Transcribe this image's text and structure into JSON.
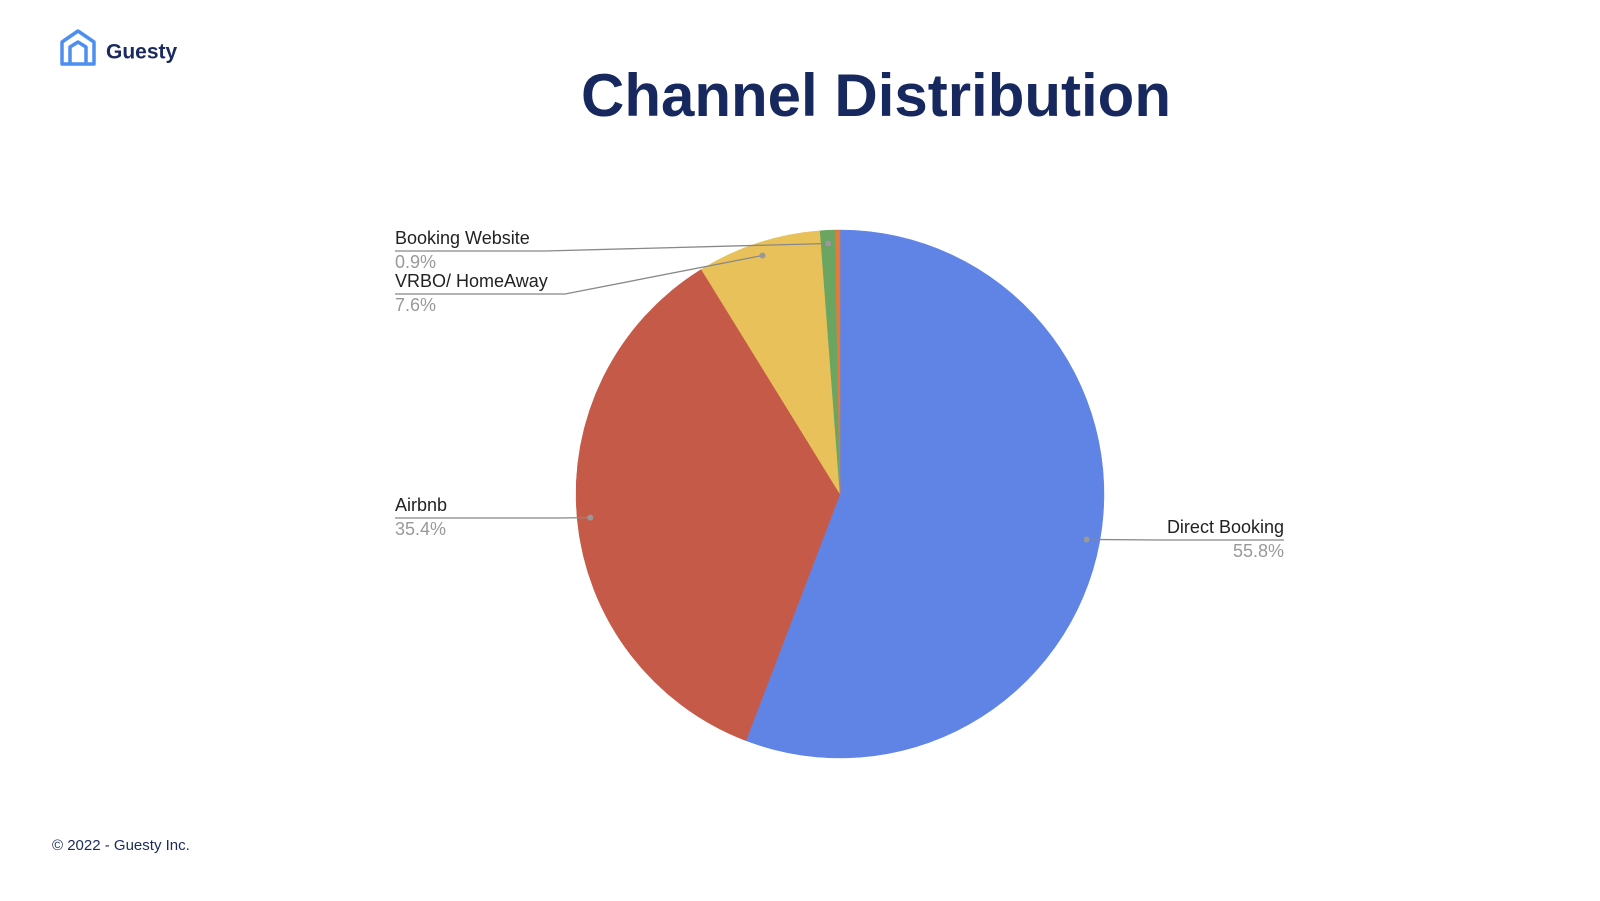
{
  "header": {
    "logo_text": "Guesty"
  },
  "footer": "© 2022 - Guesty Inc.",
  "chart_data": {
    "type": "pie",
    "title": "Channel Distribution",
    "categories": [
      "Direct Booking",
      "Airbnb",
      "VRBO/ HomeAway",
      "Booking Website",
      null
    ],
    "values": [
      55.8,
      35.4,
      7.6,
      0.9,
      0.3
    ],
    "value_labels": [
      "55.8%",
      "35.4%",
      "7.6%",
      "0.9%",
      null
    ],
    "colors": [
      "#5f84e6",
      "#c65a49",
      "#e8c15a",
      "#6aa562",
      "#e07b39"
    ]
  }
}
